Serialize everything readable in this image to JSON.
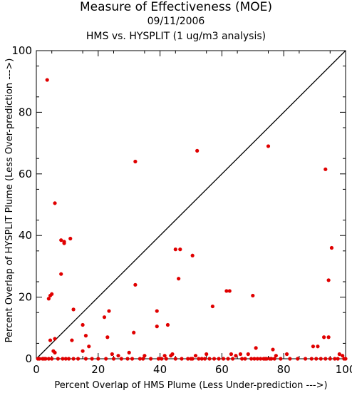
{
  "chart_data": {
    "type": "scatter",
    "title": "Measure of Effectiveness (MOE)",
    "subtitle_date": "09/11/2006",
    "subtitle_analysis": "HMS vs. HYSPLIT  (1 ug/m3 analysis)",
    "xlabel": "Percent Overlap of HMS Plume (Less Under-prediction --->)",
    "ylabel": "Percent Overlap of HYSPLIT Plume (Less Over-prediction --->)",
    "xlim": [
      0,
      100
    ],
    "ylim": [
      0,
      100
    ],
    "x_ticks": [
      "0",
      "20",
      "40",
      "60",
      "80",
      "100"
    ],
    "y_ticks": [
      "0",
      "20",
      "40",
      "60",
      "80",
      "100"
    ],
    "reference_line": "y = x",
    "grid": false,
    "point_color": "#e00000",
    "points": [
      [
        3.5,
        90.5
      ],
      [
        52,
        67.5
      ],
      [
        75,
        69
      ],
      [
        93.5,
        61.5
      ],
      [
        32,
        64
      ],
      [
        6,
        50.5
      ],
      [
        8,
        38.5
      ],
      [
        11,
        39
      ],
      [
        9,
        37.5
      ],
      [
        9,
        38
      ],
      [
        45,
        35.5
      ],
      [
        46.5,
        35.5
      ],
      [
        50.5,
        33.5
      ],
      [
        95.5,
        36
      ],
      [
        8,
        27.5
      ],
      [
        32,
        24
      ],
      [
        46,
        26
      ],
      [
        94.5,
        25.5
      ],
      [
        61.5,
        22
      ],
      [
        62.5,
        22
      ],
      [
        70,
        20.5
      ],
      [
        4,
        19.5
      ],
      [
        4.5,
        20.5
      ],
      [
        5,
        21
      ],
      [
        57,
        17
      ],
      [
        39,
        15.5
      ],
      [
        12,
        16
      ],
      [
        23.5,
        15.5
      ],
      [
        22,
        13.5
      ],
      [
        39,
        10.5
      ],
      [
        42.5,
        11
      ],
      [
        15,
        11
      ],
      [
        31.5,
        8.5
      ],
      [
        16,
        7.5
      ],
      [
        4.5,
        6
      ],
      [
        6,
        6.5
      ],
      [
        11.5,
        6
      ],
      [
        23,
        7
      ],
      [
        93,
        7
      ],
      [
        94.5,
        7
      ],
      [
        17,
        4
      ],
      [
        71,
        3.5
      ],
      [
        89.5,
        4
      ],
      [
        91,
        4
      ],
      [
        5.5,
        2.5
      ],
      [
        6,
        2
      ],
      [
        15,
        2.5
      ],
      [
        24.5,
        1.5
      ],
      [
        26.5,
        1
      ],
      [
        30,
        2
      ],
      [
        35,
        1
      ],
      [
        41.5,
        1
      ],
      [
        43.5,
        1
      ],
      [
        44,
        1.5
      ],
      [
        51.5,
        1
      ],
      [
        55,
        1.5
      ],
      [
        63,
        1.5
      ],
      [
        64.5,
        1
      ],
      [
        66,
        1.5
      ],
      [
        68.5,
        1.5
      ],
      [
        76.5,
        3
      ],
      [
        77.5,
        1
      ],
      [
        81,
        1.5
      ],
      [
        98,
        1.5
      ],
      [
        99,
        1
      ],
      [
        0.5,
        0
      ],
      [
        1,
        0
      ],
      [
        2,
        0
      ],
      [
        2.5,
        0
      ],
      [
        3,
        0
      ],
      [
        4,
        0
      ],
      [
        5,
        0
      ],
      [
        7,
        0
      ],
      [
        8.5,
        0
      ],
      [
        9.5,
        0
      ],
      [
        10.5,
        0
      ],
      [
        12,
        0
      ],
      [
        13.5,
        0
      ],
      [
        16,
        0
      ],
      [
        18,
        0
      ],
      [
        20,
        0
      ],
      [
        22.5,
        0
      ],
      [
        25,
        0
      ],
      [
        27.5,
        0
      ],
      [
        29.5,
        0
      ],
      [
        31,
        0
      ],
      [
        33.5,
        0
      ],
      [
        34.5,
        0
      ],
      [
        37,
        0
      ],
      [
        39.5,
        0
      ],
      [
        40.5,
        0
      ],
      [
        42,
        0
      ],
      [
        45,
        0
      ],
      [
        47,
        0
      ],
      [
        49,
        0
      ],
      [
        50,
        0
      ],
      [
        50.5,
        0
      ],
      [
        52.5,
        0
      ],
      [
        53.5,
        0
      ],
      [
        54.5,
        0
      ],
      [
        56,
        0
      ],
      [
        57.5,
        0
      ],
      [
        59,
        0
      ],
      [
        60.5,
        0
      ],
      [
        62,
        0
      ],
      [
        63.5,
        0
      ],
      [
        66.5,
        0
      ],
      [
        67.5,
        0
      ],
      [
        69.5,
        0
      ],
      [
        70.5,
        0
      ],
      [
        71.5,
        0
      ],
      [
        72.5,
        0
      ],
      [
        73.5,
        0
      ],
      [
        74,
        0
      ],
      [
        74.5,
        0
      ],
      [
        75.5,
        0
      ],
      [
        76,
        0
      ],
      [
        77,
        0
      ],
      [
        79,
        0
      ],
      [
        82,
        0
      ],
      [
        84.5,
        0
      ],
      [
        87,
        0
      ],
      [
        89,
        0
      ],
      [
        90.5,
        0
      ],
      [
        92,
        0
      ],
      [
        93.5,
        0
      ],
      [
        95,
        0
      ],
      [
        96.5,
        0
      ],
      [
        97.5,
        0
      ],
      [
        99.5,
        0
      ],
      [
        100,
        0
      ]
    ]
  }
}
